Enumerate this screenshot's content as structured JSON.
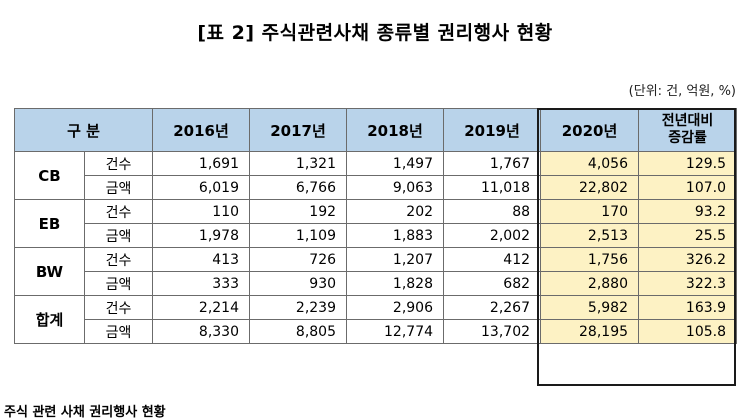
{
  "title": "[표 2] 주식관련사채 종류별 권리행사 현황",
  "unit": "(단위: 건, 억원, %)",
  "header": {
    "category": "구 분",
    "years": [
      "2016년",
      "2017년",
      "2018년",
      "2019년",
      "2020년"
    ],
    "delta_line1": "전년대비",
    "delta_line2": "증감률"
  },
  "groups": [
    {
      "name": "CB",
      "rows": [
        {
          "kind": "건수",
          "values": [
            "1,691",
            "1,321",
            "1,497",
            "1,767",
            "4,056"
          ],
          "delta": "129.5"
        },
        {
          "kind": "금액",
          "values": [
            "6,019",
            "6,766",
            "9,063",
            "11,018",
            "22,802"
          ],
          "delta": "107.0"
        }
      ]
    },
    {
      "name": "EB",
      "rows": [
        {
          "kind": "건수",
          "values": [
            "110",
            "192",
            "202",
            "88",
            "170"
          ],
          "delta": "93.2"
        },
        {
          "kind": "금액",
          "values": [
            "1,978",
            "1,109",
            "1,883",
            "2,002",
            "2,513"
          ],
          "delta": "25.5"
        }
      ]
    },
    {
      "name": "BW",
      "rows": [
        {
          "kind": "건수",
          "values": [
            "413",
            "726",
            "1,207",
            "412",
            "1,756"
          ],
          "delta": "326.2"
        },
        {
          "kind": "금액",
          "values": [
            "333",
            "930",
            "1,828",
            "682",
            "2,880"
          ],
          "delta": "322.3"
        }
      ]
    },
    {
      "name": "합계",
      "rows": [
        {
          "kind": "건수",
          "values": [
            "2,214",
            "2,239",
            "2,906",
            "2,267",
            "5,982"
          ],
          "delta": "163.9"
        },
        {
          "kind": "금액",
          "values": [
            "8,330",
            "8,805",
            "12,774",
            "13,702",
            "28,195"
          ],
          "delta": "105.8"
        }
      ]
    }
  ],
  "caption": "주식 관련 사채 권리행사 현황",
  "colors": {
    "header_bg": "#b9d3ea",
    "highlight_bg": "#fdf2c4"
  }
}
